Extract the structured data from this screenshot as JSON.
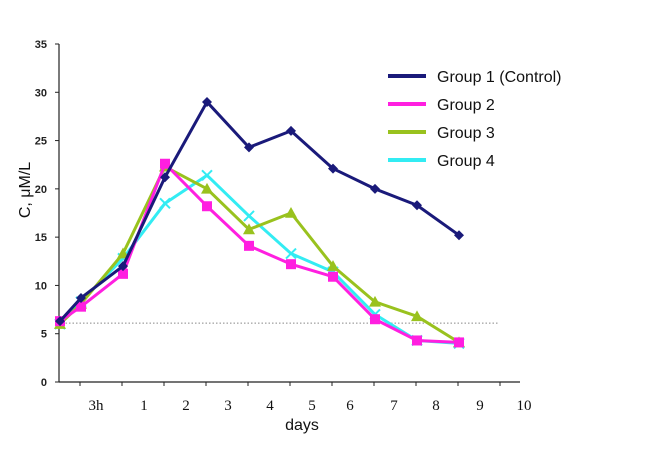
{
  "chart_data": {
    "type": "line",
    "title": "",
    "xlabel": "days",
    "ylabel": "C, μM/L",
    "x_ticks": [
      "3h",
      "1",
      "2",
      "3",
      "4",
      "5",
      "6",
      "7",
      "8",
      "9",
      "10"
    ],
    "y_ticks": [
      "0",
      "5",
      "10",
      "15",
      "20",
      "25",
      "30",
      "35"
    ],
    "ylim": [
      0,
      35
    ],
    "x": [
      0,
      0.5,
      1.5,
      2.5,
      3.5,
      4.5,
      5.5,
      6.5,
      7.5,
      8.5,
      9.5
    ],
    "baseline": 6.1,
    "legend_position": "top-right",
    "series": [
      {
        "name": "Group 1 (Control)",
        "color": "#1a1a7a",
        "marker": "diamond",
        "values": [
          6.3,
          8.7,
          12.0,
          21.2,
          29.0,
          24.3,
          26.0,
          22.1,
          20.0,
          18.3,
          15.2
        ]
      },
      {
        "name": "Group 2",
        "color": "#ff1fe0",
        "marker": "square",
        "values": [
          6.3,
          7.8,
          11.2,
          22.6,
          18.2,
          14.1,
          12.2,
          10.9,
          6.5,
          4.3,
          4.1
        ]
      },
      {
        "name": "Group 3",
        "color": "#99c21e",
        "marker": "triangle",
        "values": [
          6.0,
          8.1,
          13.3,
          22.3,
          20.0,
          15.8,
          17.5,
          12.0,
          8.3,
          6.8,
          4.1
        ]
      },
      {
        "name": "Group 4",
        "color": "#33ecf3",
        "marker": "x",
        "values": [
          6.0,
          8.3,
          12.8,
          18.5,
          21.4,
          17.2,
          13.3,
          11.4,
          7.0,
          4.3,
          4.0
        ]
      }
    ]
  }
}
